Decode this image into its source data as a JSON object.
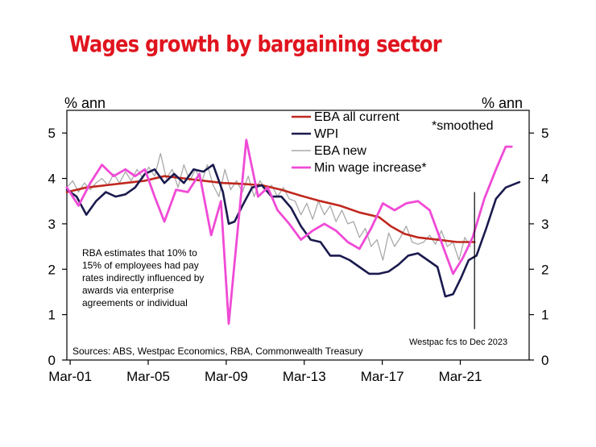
{
  "chart_data": {
    "type": "line",
    "title": "Wages growth by bargaining sector",
    "ylabel_left": "% ann",
    "ylabel_right": "% ann",
    "ylim": [
      0,
      5.5
    ],
    "yticks": [
      0,
      1,
      2,
      3,
      4,
      5
    ],
    "xlim": [
      2001.0,
      2024.7
    ],
    "xticks": [
      {
        "label": "Mar-01",
        "x": 2001.17
      },
      {
        "label": "Mar-05",
        "x": 2005.17
      },
      {
        "label": "Mar-09",
        "x": 2009.17
      },
      {
        "label": "Mar-13",
        "x": 2013.17
      },
      {
        "label": "Mar-17",
        "x": 2017.17
      },
      {
        "label": "Mar-21",
        "x": 2021.17
      }
    ],
    "legend_position": "top-right",
    "legend_note": "*smoothed",
    "annotation": "RBA estimates that 10% to 15% of employees had pay rates indirectly influenced by awards via enterprise agreements or individual",
    "annotation_lines": [
      "RBA estimates that 10% to",
      "15% of employees had pay",
      "rates indirectly influenced by",
      "awards via enterprise",
      "agreements or individual"
    ],
    "forecast_label": "Westpac fcs to Dec 2023",
    "forecast_x": 2021.9,
    "source": "Sources: ABS, Westpac Economics, RBA, Commonwealth Treasury",
    "series": [
      {
        "name": "EBA all current",
        "color": "#c0281e",
        "width": 2.6,
        "x": [
          2001.0,
          2002.0,
          2003.0,
          2004.0,
          2005.0,
          2006.0,
          2007.0,
          2008.0,
          2009.0,
          2010.0,
          2011.0,
          2012.0,
          2013.0,
          2014.0,
          2015.0,
          2016.0,
          2017.0,
          2017.6,
          2018.3,
          2019.0,
          2020.0,
          2021.0,
          2021.9
        ],
        "values": [
          3.7,
          3.8,
          3.85,
          3.9,
          3.95,
          4.05,
          4.0,
          3.95,
          3.9,
          3.88,
          3.85,
          3.75,
          3.62,
          3.5,
          3.4,
          3.25,
          3.15,
          2.95,
          2.78,
          2.7,
          2.65,
          2.6,
          2.6
        ]
      },
      {
        "name": "WPI",
        "color": "#1a1a4e",
        "width": 2.6,
        "x": [
          2001.0,
          2001.5,
          2002.0,
          2002.5,
          2003.0,
          2003.5,
          2004.0,
          2004.5,
          2005.0,
          2005.5,
          2006.0,
          2006.5,
          2007.0,
          2007.5,
          2008.0,
          2008.5,
          2009.0,
          2009.3,
          2009.6,
          2010.0,
          2010.5,
          2011.0,
          2011.5,
          2012.0,
          2012.5,
          2013.0,
          2013.5,
          2014.0,
          2014.5,
          2015.0,
          2015.5,
          2016.0,
          2016.5,
          2017.0,
          2017.5,
          2018.0,
          2018.5,
          2019.0,
          2019.5,
          2020.0,
          2020.4,
          2020.8,
          2021.2,
          2021.6,
          2022.0,
          2022.5,
          2023.0,
          2023.5,
          2024.2
        ],
        "values": [
          3.75,
          3.6,
          3.2,
          3.5,
          3.7,
          3.6,
          3.65,
          3.8,
          4.1,
          4.2,
          3.9,
          4.1,
          3.9,
          4.2,
          4.15,
          4.3,
          3.7,
          3.0,
          3.05,
          3.4,
          3.8,
          3.85,
          3.6,
          3.6,
          3.35,
          2.95,
          2.65,
          2.6,
          2.3,
          2.3,
          2.2,
          2.05,
          1.9,
          1.9,
          1.95,
          2.1,
          2.3,
          2.35,
          2.2,
          2.05,
          1.4,
          1.45,
          1.8,
          2.2,
          2.3,
          2.9,
          3.55,
          3.8,
          3.92
        ]
      },
      {
        "name": "EBA new",
        "color": "#a9a9a9",
        "width": 1.3,
        "x": [
          2001.0,
          2001.3,
          2001.6,
          2001.9,
          2002.2,
          2002.5,
          2002.8,
          2003.1,
          2003.4,
          2003.7,
          2004.0,
          2004.3,
          2004.6,
          2004.9,
          2005.2,
          2005.5,
          2005.8,
          2006.1,
          2006.4,
          2006.7,
          2007.0,
          2007.3,
          2007.6,
          2007.9,
          2008.2,
          2008.5,
          2008.8,
          2009.1,
          2009.4,
          2009.7,
          2010.0,
          2010.3,
          2010.6,
          2010.9,
          2011.2,
          2011.5,
          2011.8,
          2012.1,
          2012.4,
          2012.7,
          2013.0,
          2013.3,
          2013.6,
          2013.9,
          2014.2,
          2014.5,
          2014.8,
          2015.1,
          2015.4,
          2015.7,
          2016.0,
          2016.3,
          2016.6,
          2016.9,
          2017.2,
          2017.5,
          2017.8,
          2018.1,
          2018.4,
          2018.7,
          2019.0,
          2019.3,
          2019.6,
          2019.9,
          2020.2,
          2020.5,
          2020.8,
          2021.1,
          2021.4,
          2021.7
        ],
        "values": [
          3.8,
          3.95,
          3.7,
          3.9,
          3.75,
          3.9,
          4.0,
          3.85,
          4.1,
          3.9,
          4.15,
          3.95,
          4.2,
          4.0,
          4.25,
          4.05,
          4.55,
          4.0,
          4.2,
          3.8,
          4.3,
          3.95,
          4.2,
          3.9,
          4.3,
          3.85,
          3.6,
          4.2,
          3.75,
          3.95,
          3.7,
          4.05,
          3.6,
          3.95,
          3.75,
          3.85,
          3.6,
          3.8,
          3.55,
          3.5,
          3.2,
          3.45,
          3.1,
          3.5,
          3.2,
          3.4,
          3.05,
          3.3,
          3.0,
          3.05,
          2.7,
          2.9,
          2.5,
          2.65,
          2.2,
          2.8,
          2.5,
          2.7,
          2.95,
          2.6,
          2.55,
          2.6,
          2.75,
          2.55,
          2.85,
          2.5,
          2.6,
          2.2,
          2.7,
          2.5
        ]
      },
      {
        "name": "Min wage increase*",
        "color": "#f04ad6",
        "width": 2.8,
        "x": [
          2001.0,
          2001.6,
          2002.2,
          2002.8,
          2003.4,
          2004.0,
          2004.5,
          2005.0,
          2005.5,
          2006.0,
          2006.6,
          2007.2,
          2007.8,
          2008.4,
          2008.9,
          2009.3,
          2009.7,
          2010.2,
          2010.8,
          2011.3,
          2011.8,
          2012.4,
          2013.0,
          2013.6,
          2014.2,
          2014.8,
          2015.4,
          2016.0,
          2016.6,
          2017.2,
          2017.8,
          2018.4,
          2019.0,
          2019.6,
          2020.2,
          2020.8,
          2021.3,
          2021.8,
          2022.4,
          2023.0,
          2023.5,
          2023.8
        ],
        "values": [
          3.8,
          3.4,
          3.9,
          4.3,
          4.05,
          4.2,
          4.05,
          4.2,
          3.6,
          3.05,
          3.75,
          3.7,
          4.1,
          2.75,
          3.5,
          0.8,
          2.6,
          4.85,
          3.6,
          3.8,
          3.3,
          3.0,
          2.65,
          2.85,
          3.0,
          2.85,
          2.6,
          2.45,
          2.9,
          3.45,
          3.3,
          3.45,
          3.5,
          3.3,
          2.6,
          1.9,
          2.25,
          2.7,
          3.55,
          4.2,
          4.7,
          4.7
        ]
      }
    ]
  }
}
